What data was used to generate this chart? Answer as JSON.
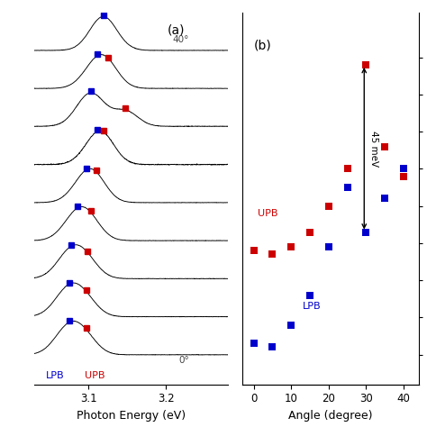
{
  "panel_a_label": "(a)",
  "panel_b_label": "(b)",
  "xlabel_a": "Photon Energy (eV)",
  "xlabel_b": "Angle (degree)",
  "lpb_label": "LPB",
  "upb_label": "UPB",
  "annotation_text": "45 meV",
  "upb_color": "#cc0000",
  "lpb_color": "#0000cc",
  "photon_energy_min": 3.03,
  "photon_energy_max": 3.28,
  "upb_x": [
    0,
    5,
    10,
    15,
    20,
    25,
    30,
    35,
    40
  ],
  "upb_y": [
    3.098,
    3.097,
    3.099,
    3.103,
    3.11,
    3.12,
    3.148,
    3.126,
    3.118
  ],
  "lpb_x": [
    0,
    5,
    10,
    15,
    20,
    25,
    30,
    35,
    40
  ],
  "lpb_y": [
    3.073,
    3.072,
    3.078,
    3.086,
    3.099,
    3.115,
    3.103,
    3.112,
    3.12
  ],
  "lpb_pos_a": [
    3.075,
    3.075,
    3.078,
    3.086,
    3.098,
    3.112,
    3.103,
    3.112,
    3.12
  ],
  "upb_pos_a": [
    3.097,
    3.097,
    3.099,
    3.103,
    3.11,
    3.12,
    3.148,
    3.126,
    3.118
  ],
  "angles_deg": [
    0,
    5,
    10,
    15,
    20,
    25,
    30,
    35,
    40
  ]
}
